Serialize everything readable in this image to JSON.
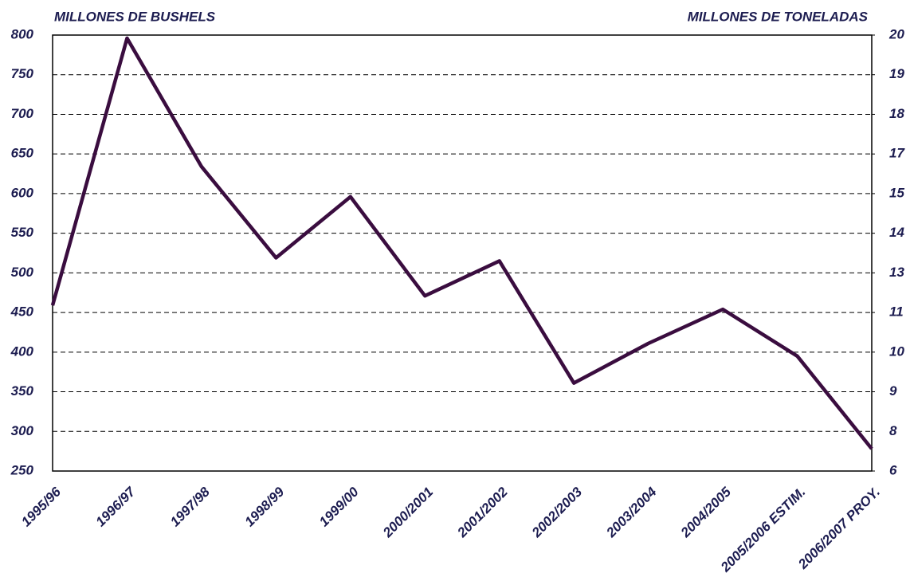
{
  "chart_data": {
    "type": "line",
    "y_axis_label": "MILLONES DE BUSHELS",
    "y2_axis_label": "MILLONES DE TONELADAS",
    "categories": [
      "1995/96",
      "1996/97",
      "1997/98",
      "1998/99",
      "1999/00",
      "2000/2001",
      "2001/2002",
      "2002/2003",
      "2003/2004",
      "2004/2005",
      "2005/2006 ESTIM.",
      "2006/2007 PROY."
    ],
    "series": [
      {
        "color": "#3a0d3f",
        "values": [
          459,
          796,
          634,
          519,
          596,
          471,
          515,
          361,
          411,
          454,
          395,
          278
        ]
      }
    ],
    "ylim": [
      250,
      800
    ],
    "yticks": [
      250,
      300,
      350,
      400,
      450,
      500,
      550,
      600,
      650,
      700,
      750,
      800
    ],
    "y2lim": [
      6.35,
      20.32
    ],
    "y2ticks": [
      {
        "value": 6.35,
        "label": "6"
      },
      {
        "value": 7.62,
        "label": "8"
      },
      {
        "value": 8.89,
        "label": "9"
      },
      {
        "value": 10.16,
        "label": "10"
      },
      {
        "value": 11.43,
        "label": "11"
      },
      {
        "value": 12.7,
        "label": "13"
      },
      {
        "value": 13.97,
        "label": "14"
      },
      {
        "value": 15.24,
        "label": "15"
      },
      {
        "value": 16.51,
        "label": "17"
      },
      {
        "value": 17.78,
        "label": "18"
      },
      {
        "value": 19.05,
        "label": "19"
      },
      {
        "value": 20.32,
        "label": "20"
      }
    ],
    "grid": true
  }
}
